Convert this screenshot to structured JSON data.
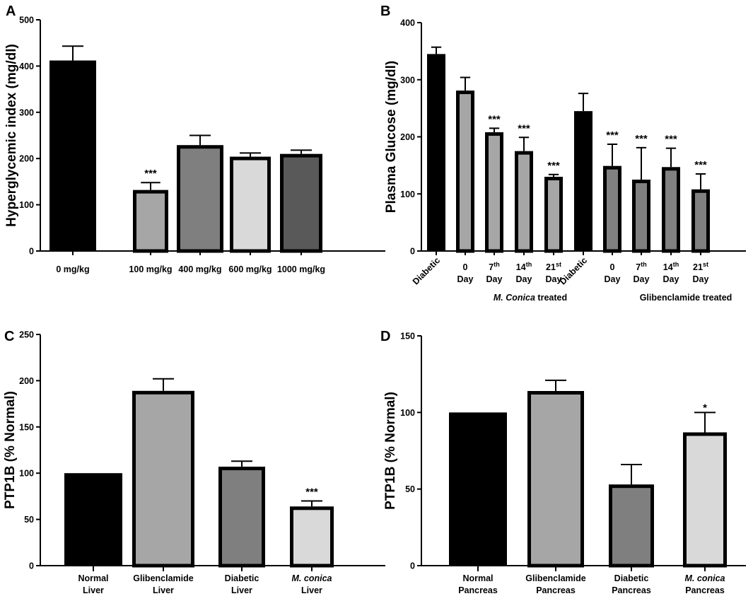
{
  "chart_data": [
    {
      "panel": "A",
      "type": "bar",
      "ylabel": "Hyperglycemic index (mg/dl)",
      "ylim": [
        0,
        500
      ],
      "yticks": [
        "0",
        "100",
        "200",
        "300",
        "400",
        "500"
      ],
      "categories": [
        [
          "0 mg/kg"
        ],
        [
          "100 mg/kg"
        ],
        [
          "400 mg/kg"
        ],
        [
          "600 mg/kg"
        ],
        [
          "1000 mg/kg"
        ]
      ],
      "values": [
        412,
        132,
        229,
        204,
        210
      ],
      "errors": [
        31,
        16,
        21,
        8,
        8
      ],
      "significance": [
        "",
        "***",
        "",
        "",
        ""
      ],
      "colors": [
        "#000000",
        "#a6a6a6",
        "#7f7f7f",
        "#d9d9d9",
        "#595959"
      ]
    },
    {
      "panel": "B",
      "type": "bar",
      "ylabel": "Plasma Glucose (mg/dl)",
      "ylim": [
        0,
        400
      ],
      "yticks": [
        "0",
        "100",
        "200",
        "300",
        "400"
      ],
      "categories": [
        [
          "Diabetic"
        ],
        [
          "0",
          "Day"
        ],
        [
          "7th",
          "Day"
        ],
        [
          "14th",
          "Day"
        ],
        [
          "21st",
          "Day"
        ],
        [
          "Diabetic"
        ],
        [
          "0",
          "Day"
        ],
        [
          "7th",
          "Day"
        ],
        [
          "14th",
          "Day"
        ],
        [
          "21st",
          "Day"
        ]
      ],
      "values": [
        345,
        281,
        208,
        175,
        130,
        245,
        149,
        125,
        147,
        108
      ],
      "errors": [
        12,
        23,
        7,
        24,
        4,
        31,
        38,
        56,
        33,
        27
      ],
      "significance": [
        "",
        "",
        "***",
        "***",
        "***",
        "",
        "***",
        "***",
        "***",
        "***"
      ],
      "colors": [
        "#000000",
        "#a6a6a6",
        "#a6a6a6",
        "#a6a6a6",
        "#a6a6a6",
        "#000000",
        "#808080",
        "#808080",
        "#808080",
        "#808080"
      ],
      "groups": [
        {
          "label_italic": "M. Conica",
          "label_rest": " treated"
        },
        {
          "label_italic": "",
          "label_rest": "Glibenclamide treated"
        }
      ]
    },
    {
      "panel": "C",
      "type": "bar",
      "ylabel": "PTP1B (% Normal)",
      "ylim": [
        0,
        250
      ],
      "yticks": [
        "0",
        "50",
        "100",
        "150",
        "200",
        "250"
      ],
      "categories": [
        [
          "Normal",
          "Liver"
        ],
        [
          "Glibenclamide",
          "Liver"
        ],
        [
          "Diabetic",
          "Liver"
        ],
        [
          "M. conica",
          "Liver"
        ]
      ],
      "values": [
        100,
        189,
        107,
        64
      ],
      "errors": [
        0,
        13,
        6,
        6
      ],
      "significance": [
        "",
        "",
        "",
        "***"
      ],
      "colors": [
        "#000000",
        "#a6a6a6",
        "#7f7f7f",
        "#d9d9d9"
      ]
    },
    {
      "panel": "D",
      "type": "bar",
      "ylabel": "PTP1B (% Normal)",
      "ylim": [
        0,
        150
      ],
      "yticks": [
        "0",
        "50",
        "100",
        "150"
      ],
      "categories": [
        [
          "Normal",
          "Pancreas"
        ],
        [
          "Glibenclamide",
          "Pancreas"
        ],
        [
          "Diabetic",
          "Pancreas"
        ],
        [
          "M. conica",
          "Pancreas"
        ]
      ],
      "values": [
        100,
        114,
        53,
        87
      ],
      "errors": [
        0,
        7,
        13,
        13
      ],
      "significance": [
        "",
        "",
        "",
        "*"
      ],
      "colors": [
        "#000000",
        "#a6a6a6",
        "#7f7f7f",
        "#d9d9d9"
      ]
    }
  ]
}
